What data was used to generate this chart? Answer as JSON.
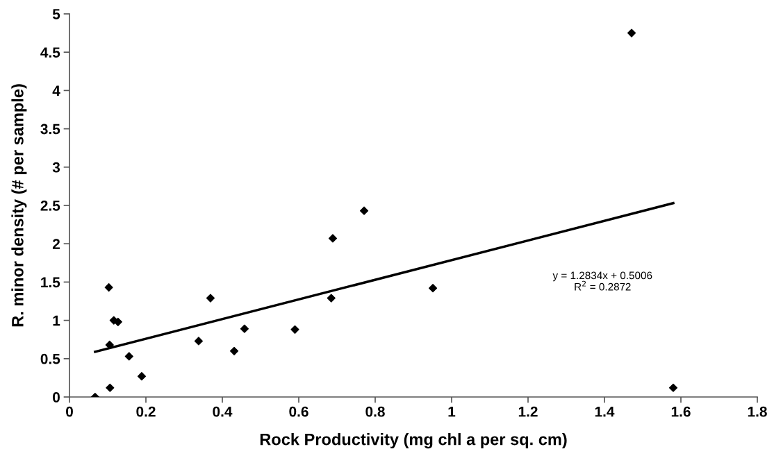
{
  "chart_data": {
    "type": "scatter",
    "xlabel": "Rock Productivity (mg chl a per sq. cm)",
    "ylabel": "R. minor density (# per sample)",
    "series": [
      {
        "color": "#000000",
        "marker": "diamond",
        "x": [
          0.067,
          0.103,
          0.116,
          0.127,
          0.105,
          0.106,
          0.156,
          0.189,
          0.338,
          0.369,
          0.431,
          0.458,
          0.59,
          0.685,
          0.689,
          0.771,
          0.951,
          1.471,
          1.58
        ],
        "values": [
          0.0,
          1.43,
          1.0,
          0.98,
          0.68,
          0.12,
          0.53,
          0.27,
          0.73,
          1.29,
          0.6,
          0.89,
          0.88,
          1.29,
          2.07,
          2.43,
          1.42,
          4.75,
          0.12
        ]
      },
      {
        "type": "line",
        "color": "#000000",
        "x": [
          0.067,
          1.58
        ],
        "values": [
          0.59,
          2.53
        ]
      }
    ],
    "annotations": [
      "y = 1.2834x + 0.5006\nR$^{2}$ = 0.2872"
    ],
    "xlim": [
      0,
      1.8
    ],
    "xticks": [
      0,
      0.2,
      0.4,
      0.6,
      0.8,
      1,
      1.2,
      1.4,
      1.6,
      1.8
    ],
    "ylim": [
      0,
      5
    ],
    "yticks": [
      0,
      0.5,
      1,
      1.5,
      2,
      2.5,
      3,
      3.5,
      4,
      4.5,
      5
    ],
    "grid": false,
    "legend": false
  }
}
